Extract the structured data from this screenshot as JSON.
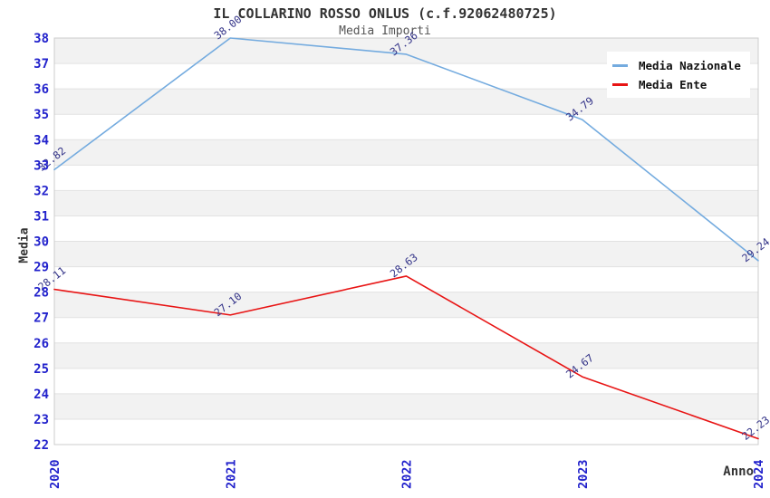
{
  "header": {
    "title": "IL COLLARINO ROSSO ONLUS (c.f.92062480725)",
    "subtitle": "Media Importi"
  },
  "axes": {
    "x_label": "Anno",
    "y_label": "Media",
    "x_ticks": [
      "2020",
      "2021",
      "2022",
      "2023",
      "2024"
    ],
    "y_ticks": [
      "38",
      "37",
      "36",
      "35",
      "34",
      "33",
      "32",
      "31",
      "30",
      "29",
      "28",
      "27",
      "26",
      "25",
      "24",
      "23",
      "22"
    ],
    "tick_color": "#2222cc",
    "label_color": "#333333"
  },
  "legend": {
    "items": [
      {
        "label": "Media Nazionale",
        "color": "#74abdf"
      },
      {
        "label": "Media Ente",
        "color": "#e81414"
      }
    ]
  },
  "chart_data": {
    "type": "line",
    "title": "IL COLLARINO ROSSO ONLUS (c.f.92062480725)",
    "subtitle": "Media Importi",
    "xlabel": "Anno",
    "ylabel": "Media",
    "x": [
      "2020",
      "2021",
      "2022",
      "2023",
      "2024"
    ],
    "series": [
      {
        "name": "Media Nazionale",
        "color": "#74abdf",
        "values": [
          32.82,
          38.0,
          37.36,
          34.79,
          29.24
        ],
        "labels": [
          "32.82",
          "38.00",
          "37.36",
          "34.79",
          "29.24"
        ]
      },
      {
        "name": "Media Ente",
        "color": "#e81414",
        "values": [
          28.11,
          27.1,
          28.63,
          24.67,
          22.23
        ],
        "labels": [
          "28.11",
          "27.10",
          "28.63",
          "24.67",
          "22.23"
        ]
      }
    ],
    "ylim": [
      22,
      38
    ],
    "grid": true,
    "band_fill": "#f2f2f2",
    "gridline_color": "#e2e2e2",
    "border_color": "#cccccc",
    "value_label_color": "#333388",
    "legend_position": "top-right"
  }
}
